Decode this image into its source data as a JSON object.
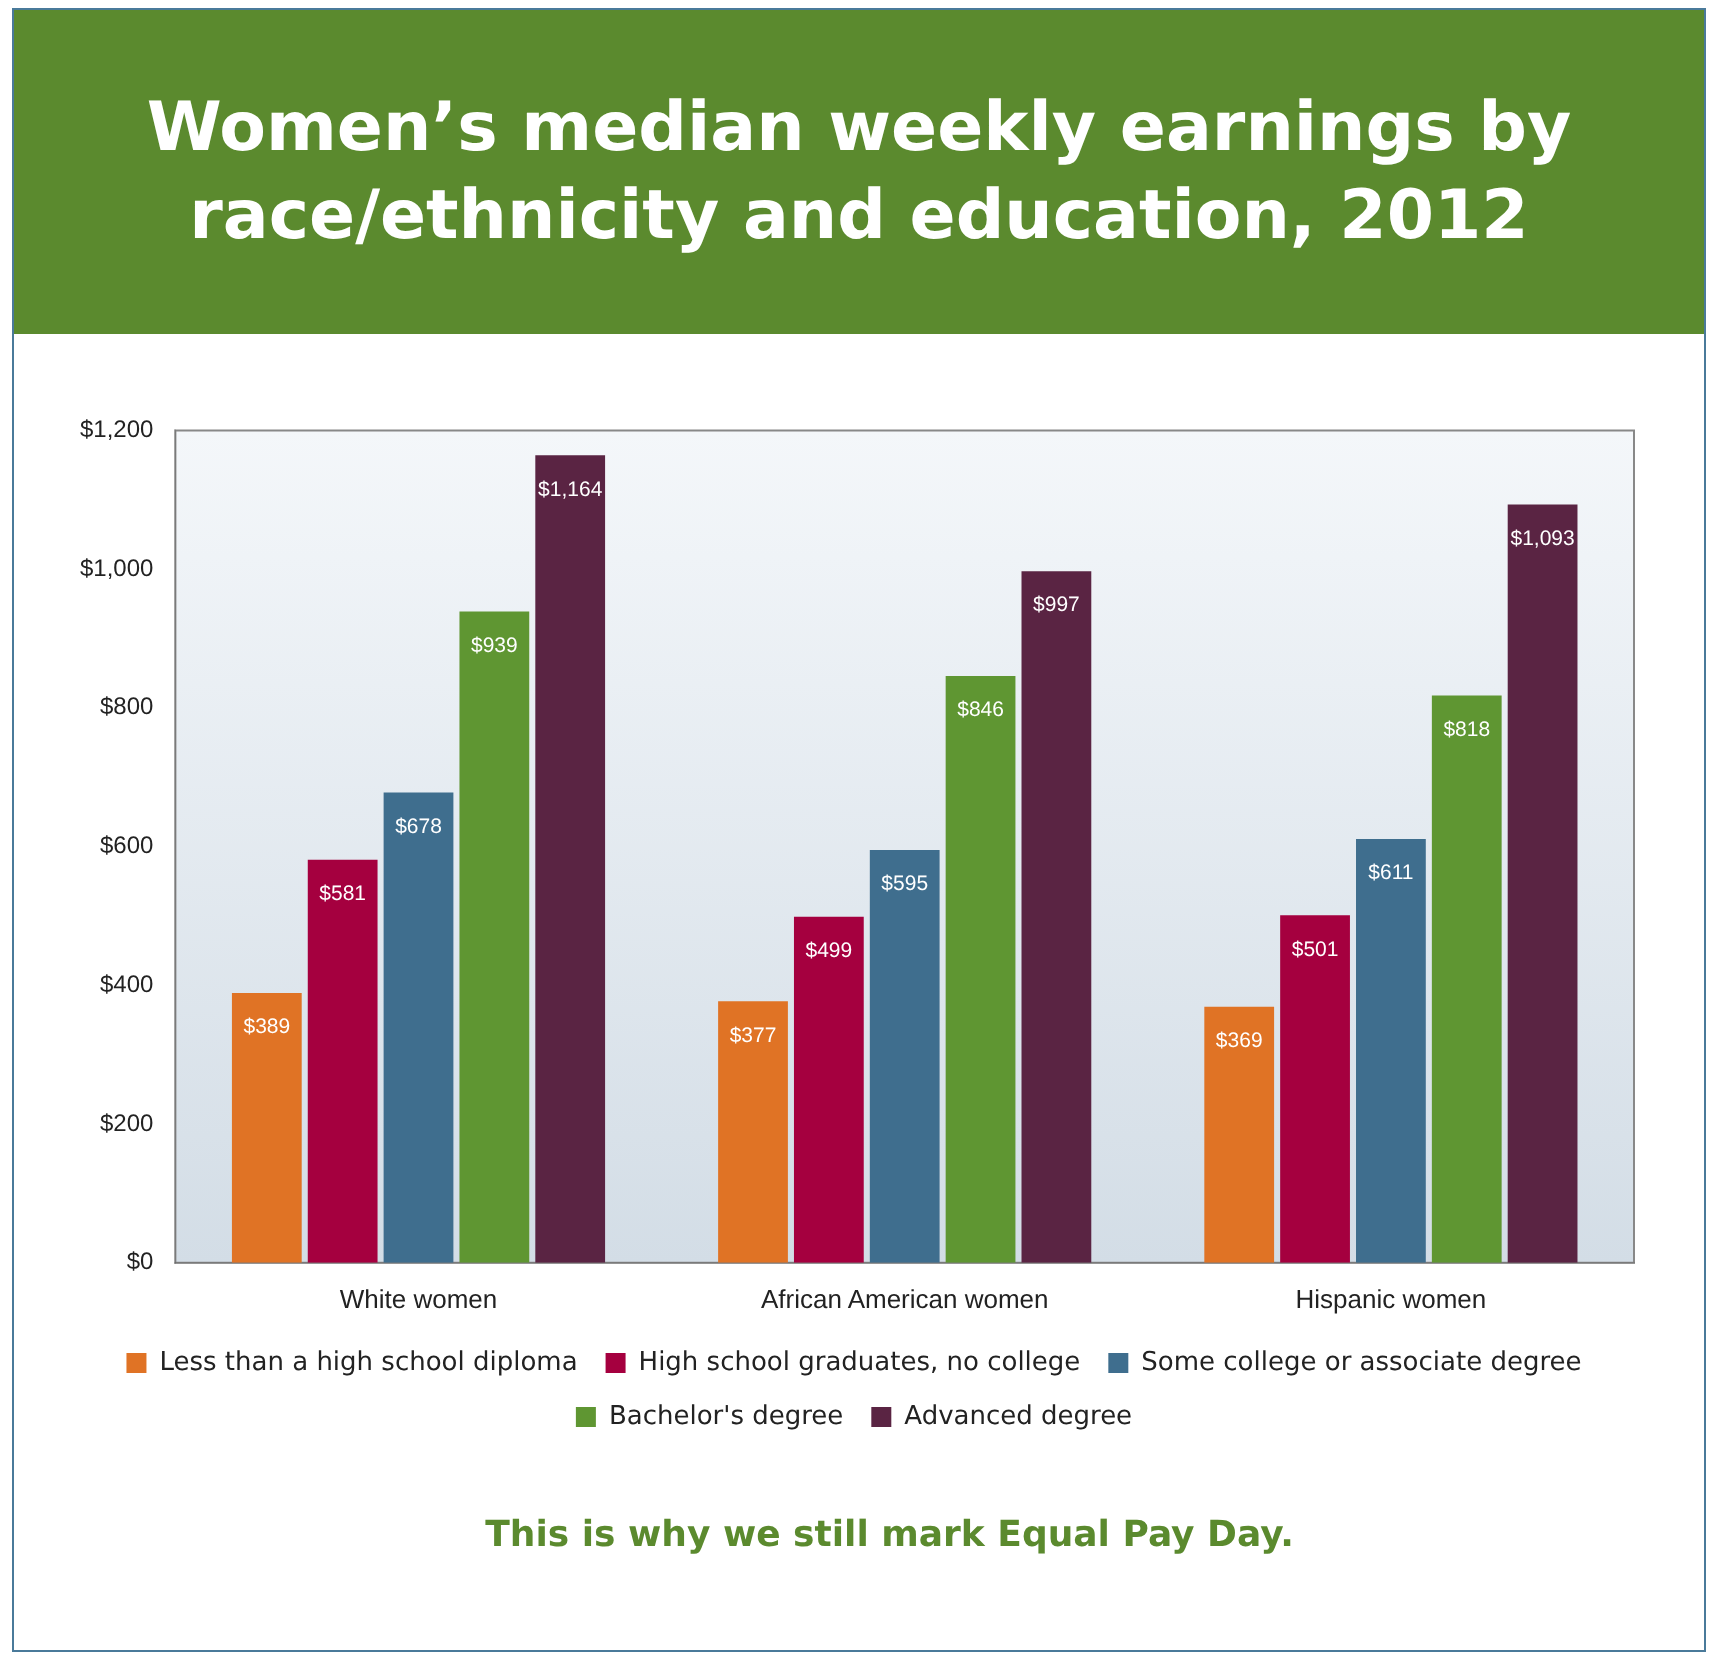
{
  "chart_data": {
    "type": "bar",
    "title": "Women’s median weekly earnings by race/ethnicity and education, 2012",
    "categories": [
      "White women",
      "African American women",
      "Hispanic women"
    ],
    "series": [
      {
        "name": "Less than a high school diploma",
        "color": "#e07325",
        "values": [
          389,
          377,
          369
        ],
        "value_labels": [
          "$389",
          "$377",
          "$369"
        ]
      },
      {
        "name": "High school graduates, no college",
        "color": "#a5003f",
        "values": [
          581,
          499,
          501
        ],
        "value_labels": [
          "$581",
          "$499",
          "$501"
        ]
      },
      {
        "name": "Some college or associate degree",
        "color": "#3f6e8e",
        "values": [
          678,
          595,
          611
        ],
        "value_labels": [
          "$678",
          "$595",
          "$611"
        ]
      },
      {
        "name": "Bachelor's degree",
        "color": "#5f9632",
        "values": [
          939,
          846,
          818
        ],
        "value_labels": [
          "$939",
          "$846",
          "$818"
        ]
      },
      {
        "name": "Advanced degree",
        "color": "#5a2443",
        "values": [
          1164,
          997,
          1093
        ],
        "value_labels": [
          "$1,164",
          "$997",
          "$1,093"
        ]
      }
    ],
    "ylim": [
      0,
      1200
    ],
    "yticks": [
      {
        "value": 0,
        "label": "$0"
      },
      {
        "value": 200,
        "label": "$200"
      },
      {
        "value": 400,
        "label": "$400"
      },
      {
        "value": 600,
        "label": "$600"
      },
      {
        "value": 800,
        "label": "$800"
      },
      {
        "value": 1000,
        "label": "$1,000"
      },
      {
        "value": 1200,
        "label": "$1,200"
      }
    ],
    "grid": false,
    "legend": "bottom",
    "annotations": [
      "This is why we still mark Equal Pay Day."
    ]
  }
}
